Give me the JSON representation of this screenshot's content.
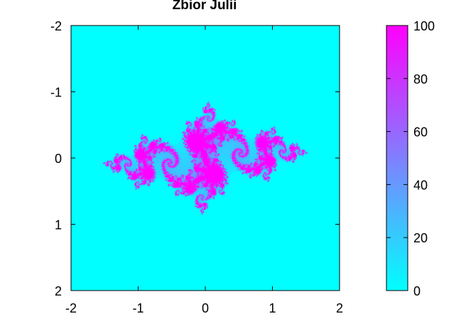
{
  "chart_data": {
    "type": "heatmap",
    "title": "Zbior Julii",
    "xlabel": "",
    "ylabel": "",
    "x_ticks": [
      "-2",
      "-1",
      "0",
      "1",
      "2"
    ],
    "y_ticks": [
      "-2",
      "-1",
      "0",
      "1",
      "2"
    ],
    "xlim": [
      -2,
      2
    ],
    "ylim": [
      -2,
      2
    ],
    "y_axis_reversed": true,
    "colorbar": {
      "ticks": [
        "0",
        "20",
        "40",
        "60",
        "80",
        "100"
      ],
      "range": [
        0,
        100
      ],
      "colormap": [
        "#00ffff",
        "#ff00ff"
      ]
    },
    "background_color": "#00ffff",
    "set_color": "#ff00ff",
    "grid": false,
    "legend": "none"
  }
}
